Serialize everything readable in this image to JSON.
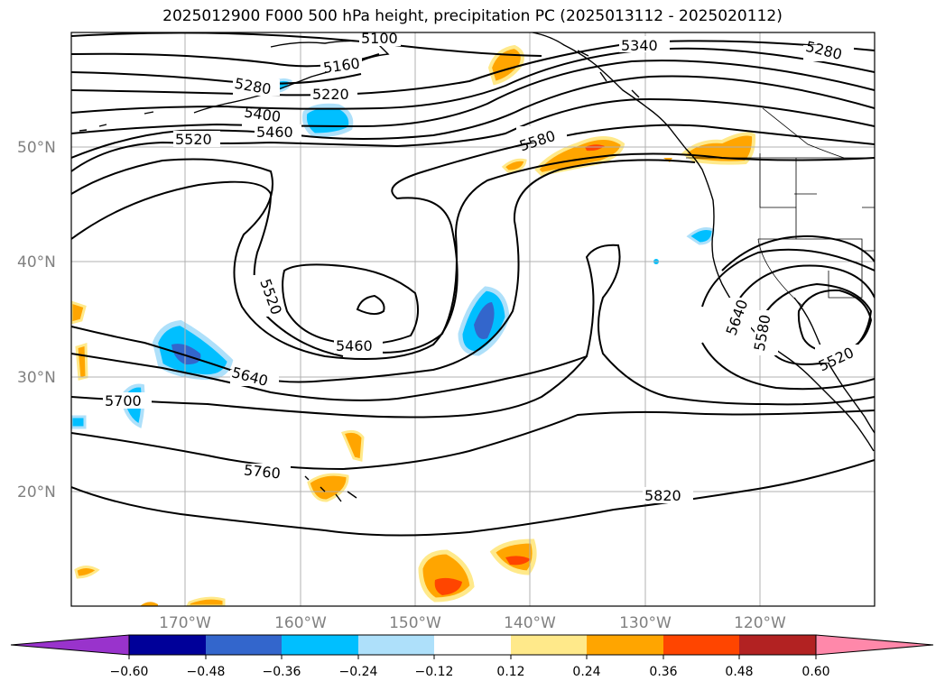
{
  "title": "2025012900 F000 500 hPa height, precipitation PC (2025013112 - 2025020112)",
  "map": {
    "lat_labels": [
      "50°N",
      "40°N",
      "30°N",
      "20°N"
    ],
    "lon_labels": [
      "170°W",
      "160°W",
      "150°W",
      "140°W",
      "130°W",
      "120°W"
    ]
  },
  "contours": {
    "labels": [
      "5100",
      "5160",
      "5220",
      "5280",
      "5340",
      "5280",
      "5400",
      "5460",
      "5520",
      "5580",
      "5520",
      "5460",
      "5640",
      "5700",
      "5760",
      "5820",
      "5640",
      "5580",
      "5520"
    ]
  },
  "colorbar": {
    "ticks": [
      "−0.60",
      "−0.48",
      "−0.36",
      "−0.24",
      "−0.12",
      "0.12",
      "0.24",
      "0.36",
      "0.48",
      "0.60"
    ],
    "colors": [
      "#9933cc",
      "#000099",
      "#3366cc",
      "#00bfff",
      "#aee0fa",
      "#ffffff",
      "#ffe98a",
      "#ffa500",
      "#ff4500",
      "#b22222",
      "#ff88aa"
    ]
  }
}
